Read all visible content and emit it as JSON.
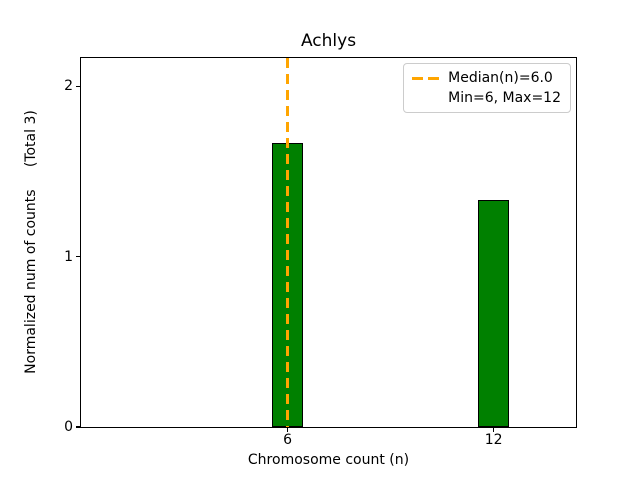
{
  "figure": {
    "background": "#ffffff"
  },
  "chart_data": {
    "type": "bar",
    "title": "Achlys",
    "xlabel": "Chromosome count (n)",
    "ylabel": "Normalized num of counts     (Total 3)",
    "bars": [
      {
        "x": 6,
        "height": 1.667
      },
      {
        "x": 12,
        "height": 1.333
      }
    ],
    "bar_width": 0.9,
    "bar_color": "#008000",
    "bar_edge_color": "#000000",
    "xticks": [
      6,
      12
    ],
    "yticks": [
      0,
      1,
      2
    ],
    "xlim": [
      -0.02,
      14.4
    ],
    "ylim": [
      0,
      2.165
    ],
    "grid": false,
    "median_line": {
      "x": 6,
      "color": "#FFA500",
      "style": "dashed",
      "width": 2.5,
      "label": "Median(n)=6.0"
    },
    "legend": {
      "position": "upper right",
      "entries": [
        {
          "label": "Median(n)=6.0",
          "handle": "orange-dashed-line"
        },
        {
          "label": "Min=6, Max=12",
          "handle": "none"
        }
      ]
    }
  }
}
